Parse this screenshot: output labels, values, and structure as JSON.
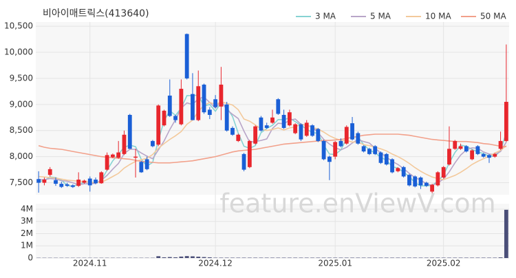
{
  "chart_data": {
    "type": "candlestick",
    "title": "비아이매트릭스(413640)",
    "watermark": "feature.enViewV.com",
    "legend": "top-right",
    "grid": true,
    "up_color": "#e8262d",
    "down_color": "#1a5fd6",
    "categories": [
      null,
      null,
      null,
      null,
      null,
      null,
      null,
      null,
      null,
      "2024.11",
      null,
      null,
      null,
      null,
      null,
      null,
      null,
      null,
      null,
      null,
      null,
      null,
      null,
      null,
      null,
      null,
      null,
      null,
      null,
      null,
      null,
      "2024.12",
      null,
      null,
      null,
      null,
      null,
      null,
      null,
      null,
      null,
      null,
      null,
      null,
      null,
      null,
      null,
      null,
      null,
      null,
      null,
      null,
      "2025.01",
      null,
      null,
      null,
      null,
      null,
      null,
      null,
      null,
      null,
      null,
      null,
      null,
      null,
      null,
      null,
      null,
      null,
      null,
      "2025.02",
      null,
      null,
      null,
      null,
      null,
      null,
      null,
      null,
      null,
      null,
      null
    ],
    "candles": [
      [
        7570,
        7720,
        7310,
        7500
      ],
      [
        7500,
        7600,
        7450,
        7560
      ],
      [
        7650,
        7800,
        7620,
        7760
      ],
      [
        7550,
        7600,
        7440,
        7480
      ],
      [
        7480,
        7520,
        7400,
        7420
      ],
      [
        7470,
        7500,
        7420,
        7440
      ],
      [
        7450,
        7470,
        7400,
        7420
      ],
      [
        7440,
        7700,
        7420,
        7560
      ],
      [
        7500,
        7560,
        7480,
        7540
      ],
      [
        7580,
        7620,
        7330,
        7450
      ],
      [
        7560,
        7600,
        7470,
        7490
      ],
      [
        7490,
        7720,
        7480,
        7700
      ],
      [
        7750,
        8080,
        7730,
        8030
      ],
      [
        7990,
        8060,
        7970,
        8040
      ],
      [
        7980,
        8300,
        7960,
        8080
      ],
      [
        8050,
        8500,
        8030,
        8420
      ],
      [
        8800,
        8820,
        8150,
        8150
      ],
      [
        7980,
        8150,
        7600,
        8000
      ],
      [
        7900,
        7920,
        7690,
        7700
      ],
      [
        7950,
        8000,
        7740,
        7760
      ],
      [
        8300,
        8320,
        8180,
        8200
      ],
      [
        8230,
        9000,
        8200,
        8980
      ],
      [
        8600,
        8900,
        8580,
        8880
      ],
      [
        9170,
        9480,
        8760,
        8780
      ],
      [
        8780,
        8800,
        8650,
        8700
      ],
      [
        8620,
        9480,
        8600,
        9300
      ],
      [
        10350,
        10360,
        9480,
        9500
      ],
      [
        9200,
        9600,
        8700,
        8700
      ],
      [
        8700,
        9650,
        8680,
        9350
      ],
      [
        9380,
        9400,
        8820,
        8850
      ],
      [
        8900,
        8950,
        8720,
        8800
      ],
      [
        9100,
        9180,
        8930,
        8950
      ],
      [
        8960,
        9720,
        8700,
        9380
      ],
      [
        9000,
        9050,
        8480,
        8500
      ],
      [
        8550,
        8580,
        8400,
        8420
      ],
      [
        8300,
        8440,
        8280,
        8420
      ],
      [
        8050,
        8070,
        7720,
        7750
      ],
      [
        7800,
        8320,
        7780,
        8300
      ],
      [
        8250,
        8600,
        8230,
        8580
      ],
      [
        8750,
        8780,
        8480,
        8500
      ],
      [
        8600,
        8650,
        8530,
        8550
      ],
      [
        8650,
        8900,
        8630,
        8750
      ],
      [
        9100,
        9120,
        8800,
        8820
      ],
      [
        8800,
        8900,
        8530,
        8550
      ],
      [
        8600,
        8900,
        8580,
        8850
      ],
      [
        8450,
        8640,
        8430,
        8620
      ],
      [
        8620,
        8640,
        8300,
        8330
      ],
      [
        8400,
        8700,
        8380,
        8650
      ],
      [
        8600,
        8620,
        8380,
        8400
      ],
      [
        8530,
        8550,
        8280,
        8300
      ],
      [
        8300,
        8320,
        7930,
        7950
      ],
      [
        8000,
        8020,
        7550,
        7900
      ],
      [
        8000,
        8300,
        7950,
        8280
      ],
      [
        8300,
        8350,
        8180,
        8200
      ],
      [
        8250,
        8600,
        8230,
        8570
      ],
      [
        8640,
        8760,
        8310,
        8330
      ],
      [
        8450,
        8480,
        8230,
        8250
      ],
      [
        8200,
        8220,
        8080,
        8100
      ],
      [
        8150,
        8170,
        8030,
        8050
      ],
      [
        8200,
        8220,
        8030,
        8050
      ],
      [
        8080,
        8100,
        7860,
        7880
      ],
      [
        8050,
        8070,
        7830,
        7850
      ],
      [
        7950,
        7970,
        7680,
        7700
      ],
      [
        7720,
        7800,
        7700,
        7780
      ],
      [
        7800,
        7820,
        7600,
        7620
      ],
      [
        7650,
        7670,
        7430,
        7450
      ],
      [
        7620,
        7640,
        7410,
        7430
      ],
      [
        7600,
        7620,
        7380,
        7450
      ],
      [
        7500,
        7520,
        7420,
        7440
      ],
      [
        7330,
        7480,
        7300,
        7460
      ],
      [
        7450,
        7720,
        7430,
        7700
      ],
      [
        7600,
        7820,
        7580,
        7800
      ],
      [
        7850,
        8580,
        7830,
        8150
      ],
      [
        8150,
        8320,
        8130,
        8300
      ],
      [
        8150,
        8250,
        8130,
        8200
      ],
      [
        8200,
        8220,
        8080,
        8100
      ],
      [
        7950,
        8140,
        7930,
        8120
      ],
      [
        8200,
        8220,
        8030,
        8050
      ],
      [
        8050,
        8070,
        7980,
        8000
      ],
      [
        8030,
        8050,
        7880,
        7980
      ],
      [
        8000,
        8070,
        7980,
        8050
      ],
      [
        8150,
        8480,
        8130,
        8300
      ],
      [
        8300,
        10150,
        8280,
        9050
      ]
    ],
    "series": [
      {
        "name": "3 MA",
        "color": "#86d3d3",
        "values": [
          7520,
          7540,
          7610,
          7600,
          7550,
          7450,
          7430,
          7470,
          7510,
          7520,
          7490,
          7550,
          7740,
          7920,
          8050,
          8180,
          8220,
          8190,
          7950,
          7820,
          7890,
          8310,
          8690,
          8880,
          8790,
          8930,
          9170,
          9170,
          9180,
          8970,
          9000,
          8870,
          9040,
          8940,
          8770,
          8450,
          8200,
          8160,
          8210,
          8460,
          8540,
          8600,
          8710,
          8710,
          8740,
          8670,
          8600,
          8530,
          8460,
          8450,
          8220,
          8050,
          8040,
          8130,
          8350,
          8370,
          8380,
          8230,
          8130,
          8070,
          7990,
          7930,
          7810,
          7780,
          7700,
          7620,
          7500,
          7440,
          7440,
          7450,
          7530,
          7650,
          7880,
          8080,
          8220,
          8200,
          8140,
          8090,
          8060,
          8010,
          8010,
          8110,
          8470
        ]
      },
      {
        "name": "5 MA",
        "color": "#b8a5c8",
        "values": [
          7560,
          7560,
          7580,
          7570,
          7540,
          7530,
          7500,
          7460,
          7480,
          7480,
          7490,
          7550,
          7640,
          7760,
          7870,
          8060,
          8140,
          8140,
          8070,
          8010,
          7960,
          8130,
          8300,
          8520,
          8710,
          8930,
          9030,
          9000,
          9110,
          9140,
          9040,
          8930,
          9070,
          8900,
          8810,
          8730,
          8490,
          8280,
          8290,
          8310,
          8340,
          8540,
          8640,
          8630,
          8700,
          8720,
          8620,
          8600,
          8570,
          8460,
          8330,
          8240,
          8170,
          8130,
          8180,
          8260,
          8330,
          8290,
          8260,
          8160,
          8070,
          7990,
          7910,
          7850,
          7770,
          7680,
          7600,
          7550,
          7480,
          7450,
          7500,
          7570,
          7710,
          7880,
          8030,
          8130,
          8170,
          8160,
          8090,
          8050,
          8040,
          8100,
          8280
        ]
      },
      {
        "name": "10 MA",
        "color": "#f3c99b",
        "values": [
          7620,
          7610,
          7600,
          7590,
          7570,
          7550,
          7540,
          7530,
          7520,
          7510,
          7500,
          7510,
          7560,
          7620,
          7680,
          7780,
          7850,
          7910,
          7940,
          7970,
          8040,
          8160,
          8250,
          8330,
          8400,
          8480,
          8620,
          8700,
          8870,
          8980,
          9040,
          9000,
          9050,
          9020,
          8990,
          8900,
          8720,
          8680,
          8610,
          8530,
          8500,
          8520,
          8550,
          8510,
          8550,
          8570,
          8620,
          8600,
          8560,
          8530,
          8470,
          8400,
          8350,
          8310,
          8310,
          8280,
          8280,
          8230,
          8210,
          8180,
          8150,
          8110,
          8050,
          8000,
          7940,
          7870,
          7790,
          7720,
          7660,
          7610,
          7580,
          7560,
          7600,
          7640,
          7700,
          7770,
          7850,
          7910,
          7960,
          8010,
          8070,
          8120,
          8210
        ]
      },
      {
        "name": "50 MA",
        "color": "#f2a08a",
        "values": [
          8210,
          8180,
          8160,
          8150,
          8140,
          8120,
          8100,
          8080,
          8060,
          8040,
          8020,
          8000,
          7990,
          7980,
          7970,
          7960,
          7950,
          7930,
          7910,
          7900,
          7890,
          7880,
          7880,
          7880,
          7890,
          7900,
          7910,
          7920,
          7940,
          7960,
          7980,
          8000,
          8030,
          8060,
          8090,
          8110,
          8120,
          8130,
          8140,
          8160,
          8180,
          8200,
          8220,
          8240,
          8250,
          8260,
          8270,
          8280,
          8290,
          8300,
          8310,
          8310,
          8320,
          8330,
          8350,
          8370,
          8390,
          8410,
          8420,
          8430,
          8430,
          8430,
          8430,
          8430,
          8420,
          8410,
          8390,
          8370,
          8350,
          8330,
          8320,
          8310,
          8300,
          8290,
          8290,
          8290,
          8280,
          8270,
          8250,
          8240,
          8220,
          8200,
          8190
        ]
      }
    ],
    "ylim": [
      7270,
      10580
    ],
    "yticks": [
      {
        "value": 7500,
        "label": "7,500"
      },
      {
        "value": 8000,
        "label": "8,000"
      },
      {
        "value": 8500,
        "label": "8,500"
      },
      {
        "value": 9000,
        "label": "9,000"
      },
      {
        "value": 9500,
        "label": "9,500"
      },
      {
        "value": 10000,
        "label": "10,000"
      },
      {
        "value": 10500,
        "label": "10,500"
      }
    ],
    "volume": {
      "color": "#4a4e78",
      "ylim": [
        0,
        4450000
      ],
      "yticks": [
        0,
        {
          "value": 1000000,
          "label": "1M"
        },
        {
          "value": 2000000,
          "label": "2M"
        },
        {
          "value": 3000000,
          "label": "3M"
        },
        {
          "value": 4000000,
          "label": "4M"
        }
      ],
      "values": [
        20000,
        20000,
        20000,
        20000,
        20000,
        20000,
        20000,
        20000,
        20000,
        20000,
        20000,
        20000,
        20000,
        20000,
        20000,
        20000,
        20000,
        20000,
        20000,
        20000,
        20000,
        150000,
        60000,
        80000,
        60000,
        120000,
        160000,
        140000,
        110000,
        80000,
        60000,
        30000,
        30000,
        30000,
        30000,
        30000,
        30000,
        30000,
        30000,
        30000,
        30000,
        30000,
        30000,
        30000,
        30000,
        30000,
        30000,
        30000,
        30000,
        30000,
        30000,
        30000,
        30000,
        30000,
        30000,
        30000,
        30000,
        30000,
        30000,
        30000,
        30000,
        30000,
        30000,
        30000,
        30000,
        30000,
        30000,
        30000,
        30000,
        30000,
        30000,
        30000,
        30000,
        30000,
        30000,
        30000,
        30000,
        30000,
        30000,
        30000,
        30000,
        50000,
        3950000
      ]
    }
  }
}
